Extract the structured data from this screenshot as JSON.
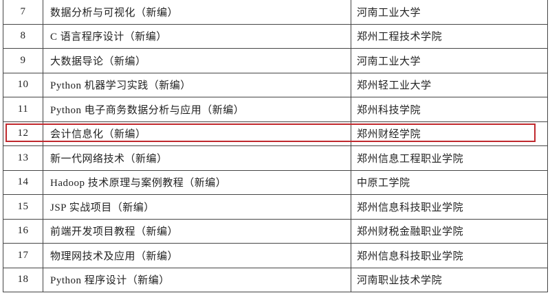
{
  "rows": [
    {
      "no": "7",
      "title": "数据分析与可视化（新编）",
      "school": "河南工业大学"
    },
    {
      "no": "8",
      "title": "C 语言程序设计（新编）",
      "school": "郑州工程技术学院"
    },
    {
      "no": "9",
      "title": "大数据导论（新编）",
      "school": "河南工业大学"
    },
    {
      "no": "10",
      "title": "Python 机器学习实践（新编）",
      "school": "郑州轻工业大学"
    },
    {
      "no": "11",
      "title": "Python 电子商务数据分析与应用（新编）",
      "school": "郑州科技学院"
    },
    {
      "no": "12",
      "title": "会计信息化（新编）",
      "school": "郑州财经学院"
    },
    {
      "no": "13",
      "title": "新一代网络技术（新编）",
      "school": "郑州信息工程职业学院"
    },
    {
      "no": "14",
      "title": "Hadoop 技术原理与案例教程（新编）",
      "school": "中原工学院"
    },
    {
      "no": "15",
      "title": "JSP 实战项目（新编）",
      "school": "郑州信息科技职业学院"
    },
    {
      "no": "16",
      "title": "前端开发项目教程（新编）",
      "school": "郑州财税金融职业学院"
    },
    {
      "no": "17",
      "title": "物理网技术及应用（新编）",
      "school": "郑州信息科技职业学院"
    },
    {
      "no": "18",
      "title": "Python 程序设计（新编）",
      "school": "河南职业技术学院"
    }
  ],
  "highlight": {
    "row_no": "12",
    "color": "#c0282d"
  }
}
